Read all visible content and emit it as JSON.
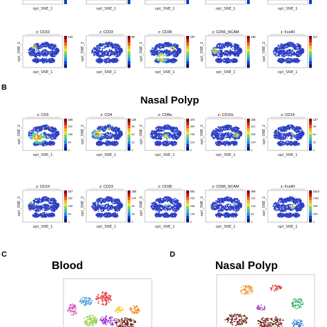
{
  "panels": {
    "b_letter": "B",
    "c_letter": "C",
    "d_letter": "D",
    "b_title": "Nasal Polyp",
    "c_title": "Blood",
    "d_title": "Nasal Polyp"
  },
  "axis": {
    "x": "opt_SNE_1",
    "y": "opt_SNE_2"
  },
  "top_row": {
    "markers": [
      "z: CD19",
      "z: CD23",
      "z: CD38",
      "z: CD56_NCAM",
      "z: FceRI"
    ],
    "max": [
      "143",
      "95",
      "187",
      "105",
      "117"
    ],
    "ticks": [
      [
        "0",
        "32",
        "64",
        "96"
      ],
      [
        "0",
        "24",
        "48",
        "72"
      ],
      [
        "0",
        "48",
        "96",
        "144"
      ],
      [
        "0",
        "28",
        "56",
        "84"
      ],
      [
        "0",
        "28",
        "56",
        "84"
      ]
    ]
  },
  "np_row1": {
    "markers": [
      "z: CD3",
      "z: CD4",
      "z: CD8a",
      "z: CD11b",
      "z: CD14"
    ],
    "max": [
      "340",
      "128",
      "472",
      "425",
      "137"
    ],
    "ticks": [
      [
        "0",
        "84",
        "168",
        "252"
      ],
      [
        "0",
        "32",
        "64",
        "96"
      ],
      [
        "0",
        "118",
        "236",
        "354"
      ],
      [
        "0",
        "104",
        "208",
        "312"
      ],
      [
        "0",
        "32",
        "64",
        "96"
      ]
    ]
  },
  "np_row2": {
    "markers": [
      "z: CD19",
      "z: CD23",
      "z: CD38",
      "z: CD56_NCAM",
      "z: FceRI"
    ],
    "max": [
      "347",
      "189",
      "581",
      "259",
      "1814"
    ],
    "ticks": [
      [
        "0",
        "84",
        "168",
        "252"
      ],
      [
        "0",
        "48",
        "96",
        "144"
      ],
      [
        "0",
        "144",
        "288",
        "432"
      ],
      [
        "0",
        "64",
        "128",
        "192"
      ],
      [
        "0",
        "454",
        "908",
        "1362"
      ]
    ]
  },
  "colors": {
    "low": "#2c3fc4",
    "high": "#c62010",
    "colorbar": [
      "#7a0010",
      "#d01818",
      "#f06010",
      "#f0b020",
      "#e0e830",
      "#80d060",
      "#40c0b0",
      "#2090e0",
      "#1040c0",
      "#001a7a"
    ]
  }
}
